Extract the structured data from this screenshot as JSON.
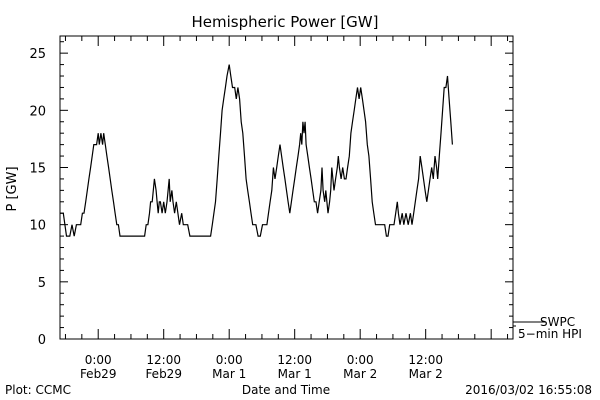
{
  "chart_data": {
    "type": "line",
    "title": "Hemispheric Power [GW]",
    "ylabel": "P [GW]",
    "xlabel": "Date and Time",
    "ylim": [
      0,
      26.5
    ],
    "y_ticks": [
      0,
      5,
      10,
      15,
      20,
      25
    ],
    "x_range_hours": [
      -7,
      76
    ],
    "x_ticks": [
      {
        "hour": 0,
        "time": "0:00",
        "date": "Feb29"
      },
      {
        "hour": 12,
        "time": "12:00",
        "date": "Feb29"
      },
      {
        "hour": 24,
        "time": "0:00",
        "date": "Mar 1"
      },
      {
        "hour": 36,
        "time": "12:00",
        "date": "Mar 1"
      },
      {
        "hour": 48,
        "time": "0:00",
        "date": "Mar 2"
      },
      {
        "hour": 60,
        "time": "12:00",
        "date": "Mar 2"
      }
    ],
    "grid": false,
    "series": [
      {
        "name": "5-min HPI",
        "color": "#000000",
        "points": [
          [
            -7,
            11
          ],
          [
            -6.4,
            11
          ],
          [
            -6.1,
            10
          ],
          [
            -5.8,
            9
          ],
          [
            -5.2,
            9
          ],
          [
            -4.8,
            10
          ],
          [
            -4.4,
            9
          ],
          [
            -4.0,
            10
          ],
          [
            -3.6,
            10
          ],
          [
            -3.2,
            10
          ],
          [
            -2.9,
            11
          ],
          [
            -2.6,
            11
          ],
          [
            -2.3,
            12
          ],
          [
            -2.0,
            13
          ],
          [
            -1.7,
            14
          ],
          [
            -1.4,
            15
          ],
          [
            -1.1,
            16
          ],
          [
            -0.8,
            17
          ],
          [
            -0.3,
            17
          ],
          [
            0.0,
            18
          ],
          [
            0.2,
            17
          ],
          [
            0.5,
            18
          ],
          [
            0.8,
            17
          ],
          [
            1.0,
            18
          ],
          [
            1.3,
            17
          ],
          [
            1.6,
            16
          ],
          [
            1.9,
            15
          ],
          [
            2.2,
            14
          ],
          [
            2.5,
            13
          ],
          [
            2.8,
            12
          ],
          [
            3.1,
            11
          ],
          [
            3.4,
            10
          ],
          [
            3.7,
            10
          ],
          [
            4.0,
            9
          ],
          [
            5.0,
            9
          ],
          [
            6.0,
            9
          ],
          [
            7.0,
            9
          ],
          [
            8.0,
            9
          ],
          [
            8.5,
            9
          ],
          [
            8.8,
            10
          ],
          [
            9.1,
            10
          ],
          [
            9.4,
            11
          ],
          [
            9.6,
            12
          ],
          [
            9.9,
            12
          ],
          [
            10.1,
            13
          ],
          [
            10.3,
            14
          ],
          [
            10.6,
            13
          ],
          [
            10.8,
            12
          ],
          [
            11.0,
            11
          ],
          [
            11.2,
            12
          ],
          [
            11.4,
            12
          ],
          [
            11.7,
            11
          ],
          [
            12.0,
            12
          ],
          [
            12.3,
            11
          ],
          [
            12.6,
            12
          ],
          [
            12.8,
            13
          ],
          [
            13.0,
            14
          ],
          [
            13.2,
            12
          ],
          [
            13.5,
            13
          ],
          [
            13.7,
            12
          ],
          [
            14.0,
            11
          ],
          [
            14.3,
            12
          ],
          [
            14.6,
            11
          ],
          [
            14.9,
            10
          ],
          [
            15.3,
            11
          ],
          [
            15.6,
            10
          ],
          [
            16.0,
            10
          ],
          [
            16.4,
            10
          ],
          [
            16.8,
            9
          ],
          [
            18.0,
            9
          ],
          [
            19.0,
            9
          ],
          [
            20.0,
            9
          ],
          [
            20.6,
            9
          ],
          [
            20.9,
            10
          ],
          [
            21.2,
            11
          ],
          [
            21.5,
            12
          ],
          [
            21.8,
            14
          ],
          [
            22.1,
            16
          ],
          [
            22.4,
            18
          ],
          [
            22.7,
            20
          ],
          [
            23.0,
            21
          ],
          [
            23.3,
            22
          ],
          [
            23.6,
            23
          ],
          [
            24.0,
            24
          ],
          [
            24.3,
            23
          ],
          [
            24.6,
            22
          ],
          [
            25.0,
            22
          ],
          [
            25.3,
            21
          ],
          [
            25.6,
            22
          ],
          [
            25.9,
            21
          ],
          [
            26.2,
            19
          ],
          [
            26.5,
            18
          ],
          [
            26.8,
            16
          ],
          [
            27.1,
            14
          ],
          [
            27.4,
            13
          ],
          [
            27.7,
            12
          ],
          [
            28.0,
            11
          ],
          [
            28.3,
            10
          ],
          [
            28.6,
            10
          ],
          [
            28.9,
            10
          ],
          [
            29.3,
            9
          ],
          [
            29.7,
            9
          ],
          [
            30.1,
            10
          ],
          [
            30.5,
            10
          ],
          [
            30.9,
            10
          ],
          [
            31.2,
            11
          ],
          [
            31.5,
            12
          ],
          [
            31.8,
            13
          ],
          [
            32.1,
            15
          ],
          [
            32.4,
            14
          ],
          [
            32.7,
            15
          ],
          [
            33.0,
            16
          ],
          [
            33.3,
            17
          ],
          [
            33.6,
            16
          ],
          [
            33.9,
            15
          ],
          [
            34.2,
            14
          ],
          [
            34.5,
            13
          ],
          [
            34.8,
            12
          ],
          [
            35.1,
            11
          ],
          [
            35.4,
            12
          ],
          [
            35.7,
            13
          ],
          [
            36.0,
            14
          ],
          [
            36.3,
            15
          ],
          [
            36.6,
            16
          ],
          [
            36.9,
            17
          ],
          [
            37.1,
            18
          ],
          [
            37.3,
            17
          ],
          [
            37.5,
            19
          ],
          [
            37.7,
            18
          ],
          [
            37.9,
            19
          ],
          [
            38.1,
            17
          ],
          [
            38.4,
            16
          ],
          [
            38.7,
            15
          ],
          [
            39.0,
            14
          ],
          [
            39.3,
            13
          ],
          [
            39.6,
            12
          ],
          [
            39.9,
            12
          ],
          [
            40.2,
            11
          ],
          [
            40.5,
            12
          ],
          [
            40.8,
            13
          ],
          [
            41.0,
            15
          ],
          [
            41.2,
            13
          ],
          [
            41.5,
            12
          ],
          [
            41.7,
            13
          ],
          [
            41.9,
            12
          ],
          [
            42.1,
            11
          ],
          [
            42.4,
            12
          ],
          [
            42.6,
            13
          ],
          [
            42.8,
            15
          ],
          [
            43.0,
            14
          ],
          [
            43.2,
            13
          ],
          [
            43.5,
            14
          ],
          [
            43.8,
            15
          ],
          [
            44.0,
            16
          ],
          [
            44.2,
            15
          ],
          [
            44.5,
            14
          ],
          [
            44.8,
            15
          ],
          [
            45.1,
            14
          ],
          [
            45.4,
            14
          ],
          [
            45.7,
            15
          ],
          [
            46.0,
            16
          ],
          [
            46.3,
            18
          ],
          [
            46.6,
            19
          ],
          [
            46.9,
            20
          ],
          [
            47.2,
            21
          ],
          [
            47.5,
            22
          ],
          [
            47.8,
            21
          ],
          [
            48.1,
            22
          ],
          [
            48.4,
            21
          ],
          [
            48.7,
            20
          ],
          [
            49.0,
            19
          ],
          [
            49.3,
            17
          ],
          [
            49.6,
            16
          ],
          [
            49.9,
            14
          ],
          [
            50.2,
            12
          ],
          [
            50.5,
            11
          ],
          [
            50.8,
            10
          ],
          [
            51.2,
            10
          ],
          [
            52.0,
            10
          ],
          [
            52.5,
            10
          ],
          [
            52.8,
            9
          ],
          [
            53.1,
            9
          ],
          [
            53.4,
            10
          ],
          [
            53.8,
            10
          ],
          [
            54.2,
            10
          ],
          [
            54.5,
            11
          ],
          [
            54.8,
            12
          ],
          [
            55.0,
            11
          ],
          [
            55.3,
            10
          ],
          [
            55.7,
            11
          ],
          [
            56.0,
            10
          ],
          [
            56.4,
            11
          ],
          [
            56.8,
            10
          ],
          [
            57.2,
            11
          ],
          [
            57.5,
            10
          ],
          [
            57.8,
            11
          ],
          [
            58.1,
            12
          ],
          [
            58.4,
            13
          ],
          [
            58.7,
            14
          ],
          [
            59.0,
            16
          ],
          [
            59.3,
            15
          ],
          [
            59.6,
            14
          ],
          [
            59.9,
            13
          ],
          [
            60.2,
            12
          ],
          [
            60.5,
            13
          ],
          [
            60.8,
            14
          ],
          [
            61.1,
            15
          ],
          [
            61.4,
            14
          ],
          [
            61.7,
            16
          ],
          [
            62.0,
            15
          ],
          [
            62.2,
            14
          ],
          [
            62.5,
            16
          ],
          [
            62.8,
            18
          ],
          [
            63.1,
            20
          ],
          [
            63.4,
            22
          ],
          [
            63.7,
            22
          ],
          [
            64.0,
            23
          ],
          [
            64.3,
            21
          ],
          [
            64.6,
            19
          ],
          [
            64.9,
            17
          ]
        ]
      }
    ]
  },
  "page": {
    "footer_left": "Plot: CCMC",
    "footer_right": "2016/03/02 16:55:08",
    "legend_label_1": "SWPC",
    "legend_label_2": "5−min HPI"
  }
}
